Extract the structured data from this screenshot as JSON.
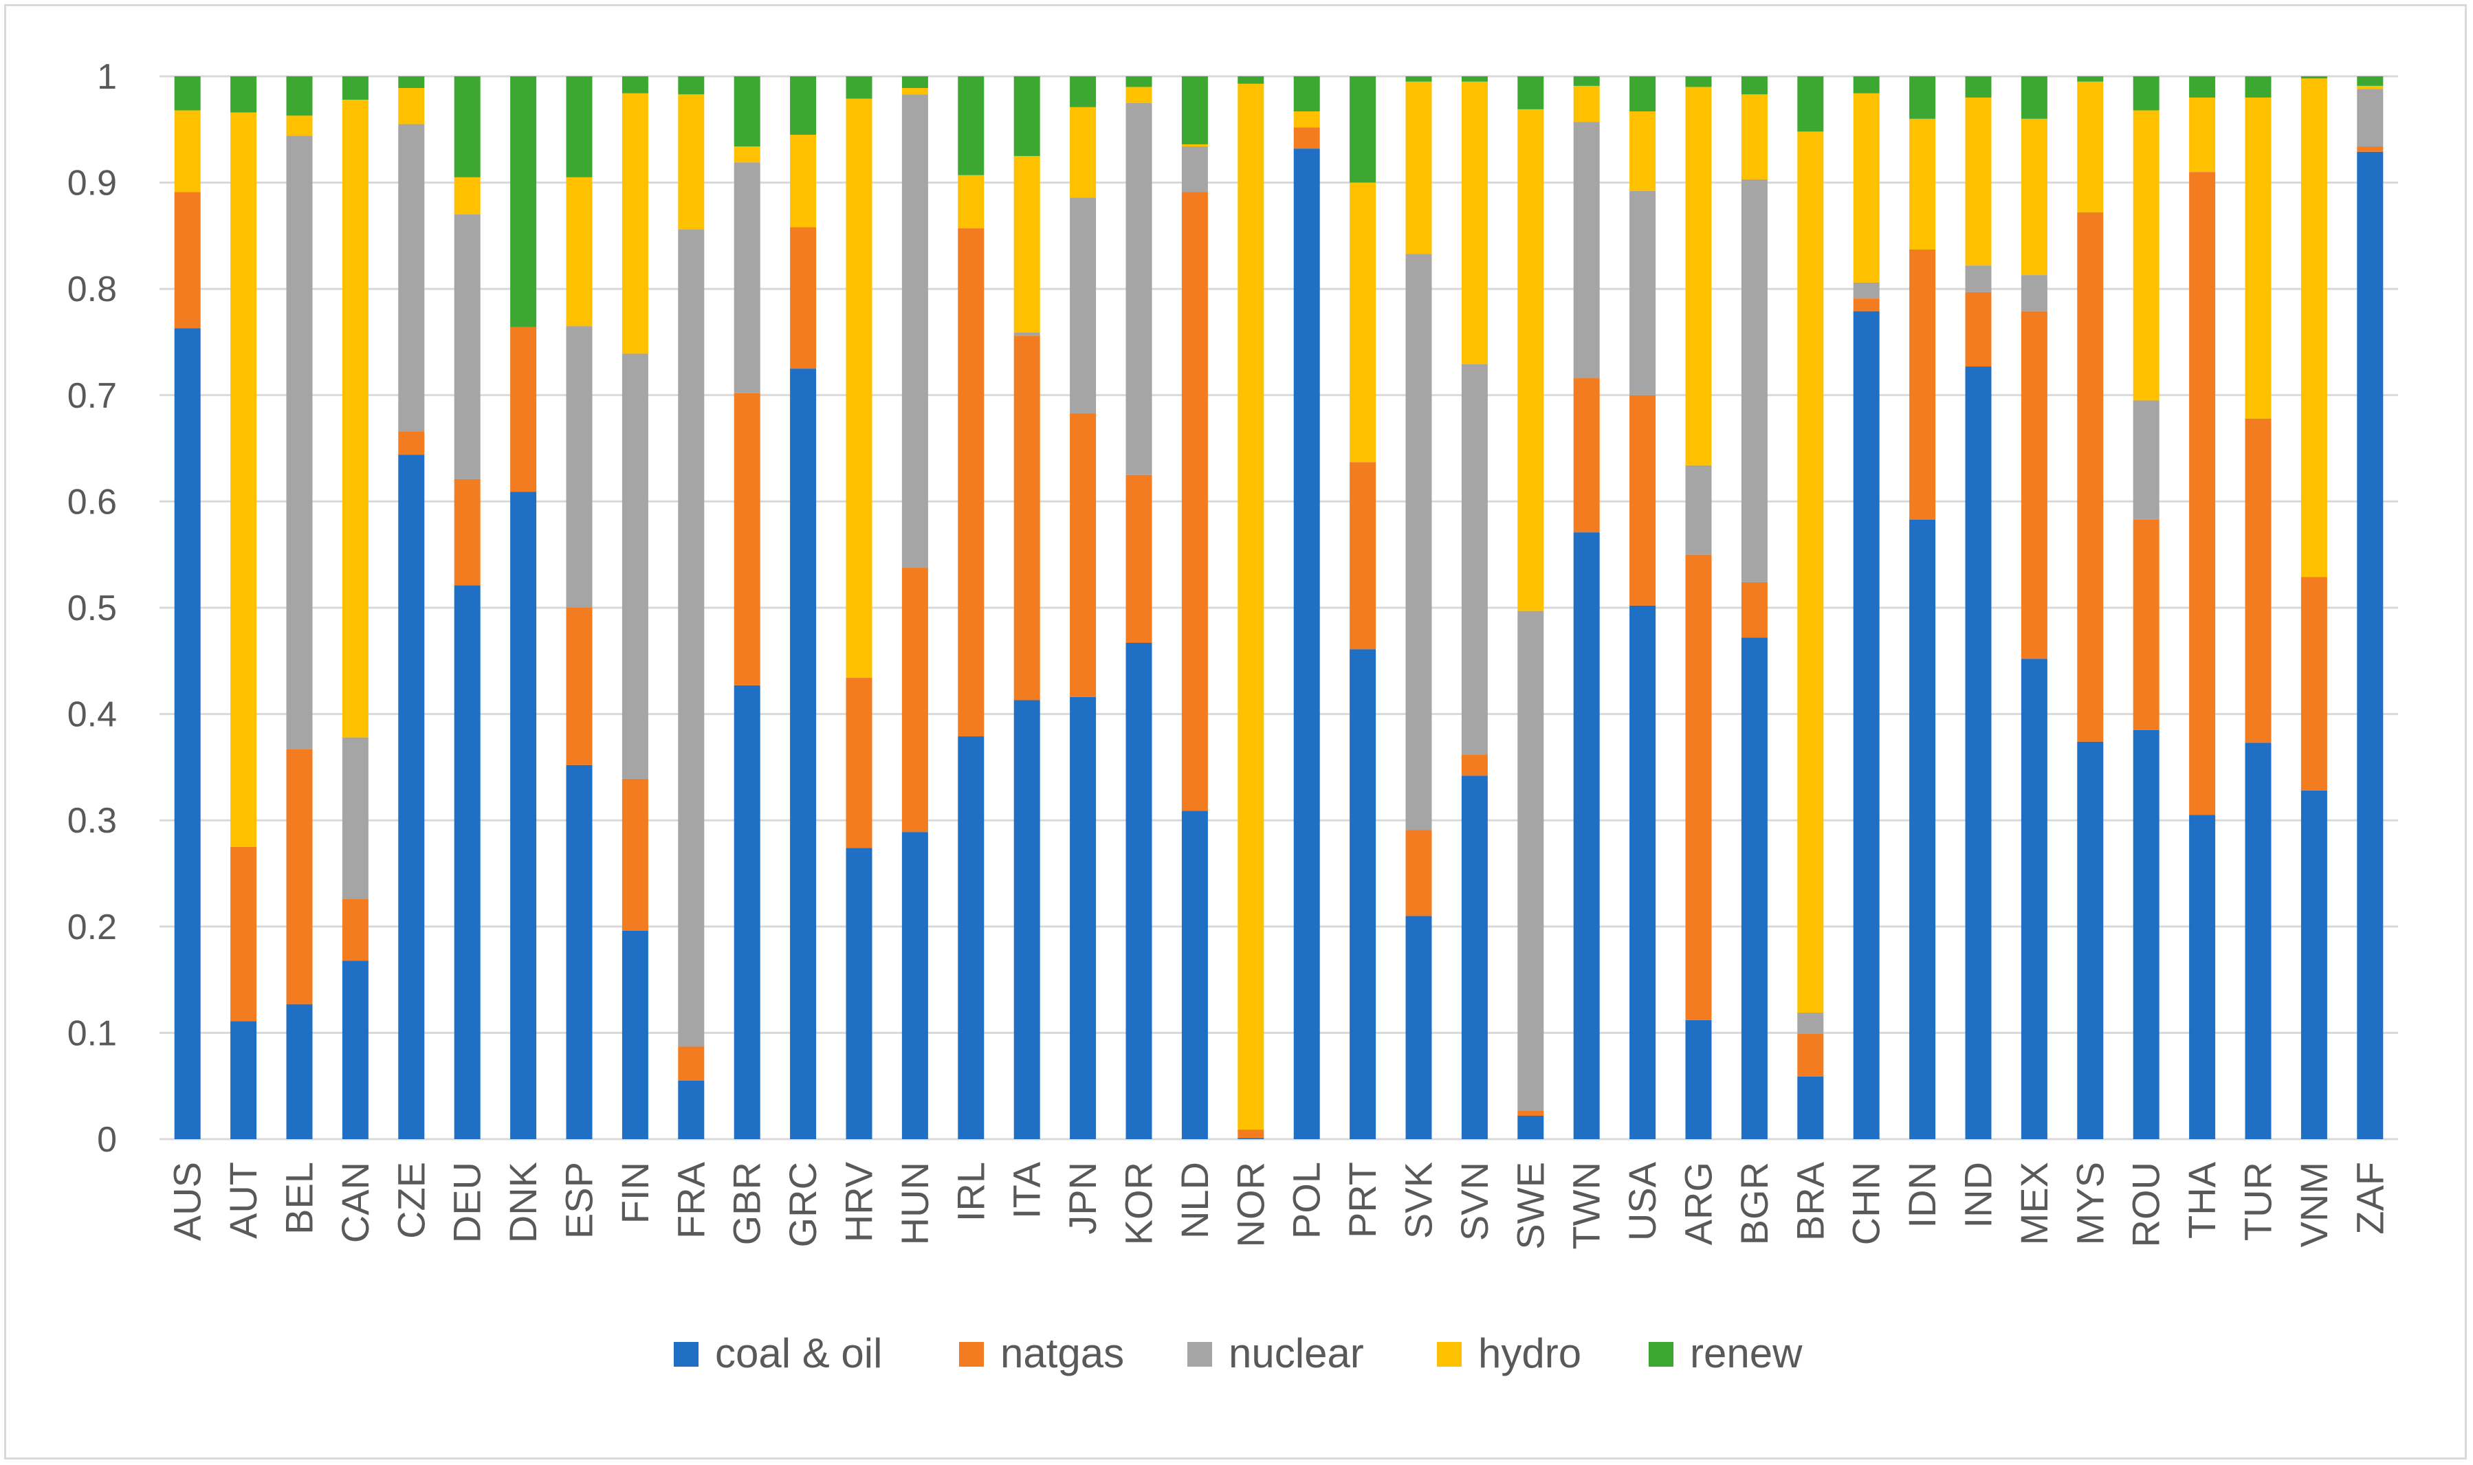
{
  "chart_data": {
    "type": "bar",
    "stacked": true,
    "categories": [
      "AUS",
      "AUT",
      "BEL",
      "CAN",
      "CZE",
      "DEU",
      "DNK",
      "ESP",
      "FIN",
      "FRA",
      "GBR",
      "GRC",
      "HRV",
      "HUN",
      "IRL",
      "ITA",
      "JPN",
      "KOR",
      "NLD",
      "NOR",
      "POL",
      "PRT",
      "SVK",
      "SVN",
      "SWE",
      "TWN",
      "USA",
      "ARG",
      "BGR",
      "BRA",
      "CHN",
      "IDN",
      "IND",
      "MEX",
      "MYS",
      "ROU",
      "THA",
      "TUR",
      "VNM",
      "ZAF"
    ],
    "series": [
      {
        "name": "coal & oil",
        "color": "#1f6fc5",
        "values": [
          0.763,
          0.111,
          0.127,
          0.168,
          0.644,
          0.521,
          0.609,
          0.352,
          0.196,
          0.055,
          0.427,
          0.725,
          0.274,
          0.289,
          0.379,
          0.413,
          0.416,
          0.467,
          0.309,
          0.001,
          0.932,
          0.461,
          0.21,
          0.342,
          0.022,
          0.571,
          0.502,
          0.112,
          0.472,
          0.059,
          0.779,
          0.583,
          0.727,
          0.452,
          0.374,
          0.385,
          0.305,
          0.373,
          0.328,
          0.929
        ]
      },
      {
        "name": "natgas",
        "color": "#f47c20",
        "values": [
          0.128,
          0.164,
          0.24,
          0.058,
          0.022,
          0.1,
          0.155,
          0.148,
          0.143,
          0.032,
          0.275,
          0.133,
          0.16,
          0.249,
          0.478,
          0.343,
          0.267,
          0.158,
          0.582,
          0.008,
          0.02,
          0.176,
          0.081,
          0.02,
          0.005,
          0.145,
          0.198,
          0.438,
          0.052,
          0.04,
          0.012,
          0.254,
          0.07,
          0.327,
          0.498,
          0.198,
          0.605,
          0.305,
          0.201,
          0.005
        ]
      },
      {
        "name": "nuclear",
        "color": "#a5a5a5",
        "values": [
          0.0,
          0.0,
          0.577,
          0.152,
          0.289,
          0.249,
          0.0,
          0.265,
          0.4,
          0.769,
          0.217,
          0.0,
          0.0,
          0.445,
          0.0,
          0.003,
          0.203,
          0.35,
          0.043,
          0.0,
          0.0,
          0.0,
          0.542,
          0.367,
          0.47,
          0.241,
          0.192,
          0.084,
          0.379,
          0.02,
          0.015,
          0.0,
          0.025,
          0.034,
          0.0,
          0.112,
          0.0,
          0.0,
          0.0,
          0.054
        ]
      },
      {
        "name": "hydro",
        "color": "#ffc000",
        "values": [
          0.077,
          0.691,
          0.019,
          0.6,
          0.034,
          0.035,
          0.0,
          0.14,
          0.245,
          0.127,
          0.015,
          0.087,
          0.545,
          0.006,
          0.05,
          0.166,
          0.085,
          0.015,
          0.002,
          0.984,
          0.015,
          0.263,
          0.162,
          0.266,
          0.472,
          0.034,
          0.075,
          0.356,
          0.08,
          0.829,
          0.178,
          0.123,
          0.158,
          0.147,
          0.123,
          0.273,
          0.07,
          0.302,
          0.469,
          0.003
        ]
      },
      {
        "name": "renew",
        "color": "#3ca832",
        "values": [
          0.032,
          0.034,
          0.037,
          0.022,
          0.011,
          0.095,
          0.236,
          0.095,
          0.016,
          0.017,
          0.066,
          0.055,
          0.021,
          0.011,
          0.093,
          0.075,
          0.029,
          0.01,
          0.064,
          0.007,
          0.033,
          0.1,
          0.005,
          0.005,
          0.031,
          0.009,
          0.033,
          0.01,
          0.017,
          0.052,
          0.016,
          0.04,
          0.02,
          0.04,
          0.005,
          0.032,
          0.02,
          0.02,
          0.002,
          0.009
        ]
      }
    ],
    "yticks": [
      "0",
      "0.1",
      "0.2",
      "0.3",
      "0.4",
      "0.5",
      "0.6",
      "0.7",
      "0.8",
      "0.9",
      "1"
    ],
    "ylim": [
      0,
      1
    ],
    "grid": true,
    "legend": "bottom"
  }
}
